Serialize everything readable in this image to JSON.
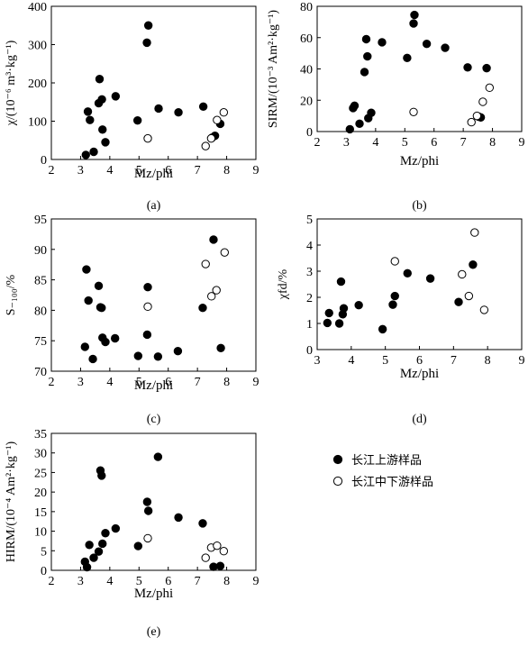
{
  "chart_data": [
    {
      "type": "scatter",
      "panel": "(a)",
      "xlabel": "Mz/phi",
      "ylabel": "χ/(10⁻⁶ m³·kg⁻¹)",
      "xlim": [
        2,
        9
      ],
      "ylim": [
        0,
        400
      ],
      "xticks": [
        "2",
        "3",
        "4",
        "5",
        "6",
        "7",
        "8",
        "9"
      ],
      "yticks": [
        "0",
        "100",
        "200",
        "300",
        "400"
      ],
      "series": [
        {
          "name": "长江上游样品",
          "marker": "filled",
          "points": [
            [
              3.18,
              12
            ],
            [
              3.25,
              125
            ],
            [
              3.32,
              103
            ],
            [
              3.45,
              20
            ],
            [
              3.62,
              147
            ],
            [
              3.65,
              210
            ],
            [
              3.73,
              157
            ],
            [
              3.75,
              78
            ],
            [
              3.85,
              45
            ],
            [
              4.2,
              165
            ],
            [
              4.95,
              102
            ],
            [
              5.27,
              305
            ],
            [
              5.32,
              350
            ],
            [
              5.67,
              133
            ],
            [
              6.35,
              123
            ],
            [
              7.2,
              138
            ],
            [
              7.5,
              57
            ],
            [
              7.6,
              62
            ],
            [
              7.78,
              93
            ]
          ]
        },
        {
          "name": "长江中下游样品",
          "marker": "open",
          "points": [
            [
              5.3,
              55
            ],
            [
              7.28,
              35
            ],
            [
              7.47,
              55
            ],
            [
              7.67,
              103
            ],
            [
              7.9,
              123
            ]
          ]
        }
      ]
    },
    {
      "type": "scatter",
      "panel": "(b)",
      "xlabel": "Mz/phi",
      "ylabel": "SIRM/(10⁻³ Am²·kg⁻¹)",
      "xlim": [
        2,
        9
      ],
      "ylim": [
        0,
        80
      ],
      "xticks": [
        "2",
        "3",
        "4",
        "5",
        "6",
        "7",
        "8",
        "9"
      ],
      "yticks": [
        "0",
        "20",
        "40",
        "60",
        "80"
      ],
      "series": [
        {
          "name": "长江上游样品",
          "marker": "filled",
          "points": [
            [
              3.12,
              1.5
            ],
            [
              3.23,
              15
            ],
            [
              3.28,
              16.5
            ],
            [
              3.45,
              5
            ],
            [
              3.62,
              38
            ],
            [
              3.68,
              59
            ],
            [
              3.72,
              48
            ],
            [
              3.75,
              8.5
            ],
            [
              3.85,
              12
            ],
            [
              4.22,
              57
            ],
            [
              5.08,
              47
            ],
            [
              5.3,
              69
            ],
            [
              5.33,
              74.5
            ],
            [
              5.75,
              56
            ],
            [
              6.38,
              53.5
            ],
            [
              7.15,
              41
            ],
            [
              7.53,
              9.5
            ],
            [
              7.6,
              9
            ],
            [
              7.8,
              40.5
            ]
          ]
        },
        {
          "name": "长江中下游样品",
          "marker": "open",
          "points": [
            [
              5.3,
              12.5
            ],
            [
              7.28,
              6
            ],
            [
              7.47,
              10
            ],
            [
              7.67,
              19
            ],
            [
              7.9,
              28
            ]
          ]
        }
      ]
    },
    {
      "type": "scatter",
      "panel": "(c)",
      "xlabel": "Mz/phi",
      "ylabel": "S₋₁₀₀/%",
      "xlim": [
        2,
        9
      ],
      "ylim": [
        70,
        95
      ],
      "xticks": [
        "2",
        "3",
        "4",
        "5",
        "6",
        "7",
        "8",
        "9"
      ],
      "yticks": [
        "70",
        "75",
        "80",
        "85",
        "90",
        "95"
      ],
      "series": [
        {
          "name": "长江上游样品",
          "marker": "filled",
          "points": [
            [
              3.15,
              74
            ],
            [
              3.2,
              86.7
            ],
            [
              3.27,
              81.6
            ],
            [
              3.42,
              72
            ],
            [
              3.62,
              84
            ],
            [
              3.68,
              80.5
            ],
            [
              3.72,
              80.4
            ],
            [
              3.75,
              75.5
            ],
            [
              3.85,
              74.8
            ],
            [
              4.18,
              75.4
            ],
            [
              4.97,
              72.5
            ],
            [
              5.28,
              76
            ],
            [
              5.3,
              83.8
            ],
            [
              5.65,
              72.4
            ],
            [
              6.33,
              73.3
            ],
            [
              7.18,
              80.4
            ],
            [
              7.55,
              91.6
            ],
            [
              7.8,
              73.8
            ]
          ]
        },
        {
          "name": "长江中下游样品",
          "marker": "open",
          "points": [
            [
              5.3,
              80.6
            ],
            [
              7.28,
              87.6
            ],
            [
              7.48,
              82.3
            ],
            [
              7.65,
              83.3
            ],
            [
              7.93,
              89.5
            ]
          ]
        }
      ]
    },
    {
      "type": "scatter",
      "panel": "(d)",
      "xlabel": "Mz/phi",
      "ylabel": "χfd/%",
      "xlim": [
        3,
        9
      ],
      "ylim": [
        0,
        5
      ],
      "xticks": [
        "3",
        "4",
        "5",
        "6",
        "7",
        "8",
        "9"
      ],
      "yticks": [
        "0",
        "1",
        "2",
        "3",
        "4",
        "5"
      ],
      "series": [
        {
          "name": "长江上游样品",
          "marker": "filled",
          "points": [
            [
              3.3,
              1.02
            ],
            [
              3.35,
              1.4
            ],
            [
              3.65,
              1.0
            ],
            [
              3.7,
              2.6
            ],
            [
              3.75,
              1.35
            ],
            [
              3.78,
              1.58
            ],
            [
              4.22,
              1.7
            ],
            [
              4.92,
              0.78
            ],
            [
              5.22,
              1.72
            ],
            [
              5.28,
              2.05
            ],
            [
              5.65,
              2.92
            ],
            [
              6.32,
              2.72
            ],
            [
              7.15,
              1.82
            ],
            [
              7.57,
              3.25
            ]
          ]
        },
        {
          "name": "长江中下游样品",
          "marker": "open",
          "points": [
            [
              5.28,
              3.38
            ],
            [
              7.25,
              2.88
            ],
            [
              7.45,
              2.05
            ],
            [
              7.62,
              4.48
            ],
            [
              7.9,
              1.52
            ]
          ]
        }
      ]
    },
    {
      "type": "scatter",
      "panel": "(e)",
      "xlabel": "Mz/phi",
      "ylabel": "HIRM/(10⁻⁴ Am²·kg⁻¹)",
      "xlim": [
        2,
        9
      ],
      "ylim": [
        0,
        35
      ],
      "xticks": [
        "2",
        "3",
        "4",
        "5",
        "6",
        "7",
        "8",
        "9"
      ],
      "yticks": [
        "0",
        "5",
        "10",
        "15",
        "20",
        "25",
        "30",
        "35"
      ],
      "series": [
        {
          "name": "长江上游样品",
          "marker": "filled",
          "points": [
            [
              3.15,
              2.2
            ],
            [
              3.22,
              0.8
            ],
            [
              3.3,
              6.5
            ],
            [
              3.45,
              3.2
            ],
            [
              3.62,
              4.8
            ],
            [
              3.68,
              25.5
            ],
            [
              3.72,
              24.2
            ],
            [
              3.75,
              6.8
            ],
            [
              3.85,
              9.5
            ],
            [
              4.2,
              10.7
            ],
            [
              4.97,
              6.2
            ],
            [
              5.28,
              17.5
            ],
            [
              5.32,
              15.2
            ],
            [
              5.65,
              29
            ],
            [
              6.35,
              13.5
            ],
            [
              7.18,
              12
            ],
            [
              7.55,
              0.9
            ],
            [
              7.78,
              1.1
            ]
          ]
        },
        {
          "name": "长江中下游样品",
          "marker": "open",
          "points": [
            [
              5.3,
              8.2
            ],
            [
              7.28,
              3.2
            ],
            [
              7.47,
              5.8
            ],
            [
              7.67,
              6.3
            ],
            [
              7.9,
              4.9
            ]
          ]
        }
      ]
    }
  ],
  "legend": [
    {
      "label": "长江上游样品",
      "marker": "filled"
    },
    {
      "label": "长江中下游样品",
      "marker": "open"
    }
  ]
}
